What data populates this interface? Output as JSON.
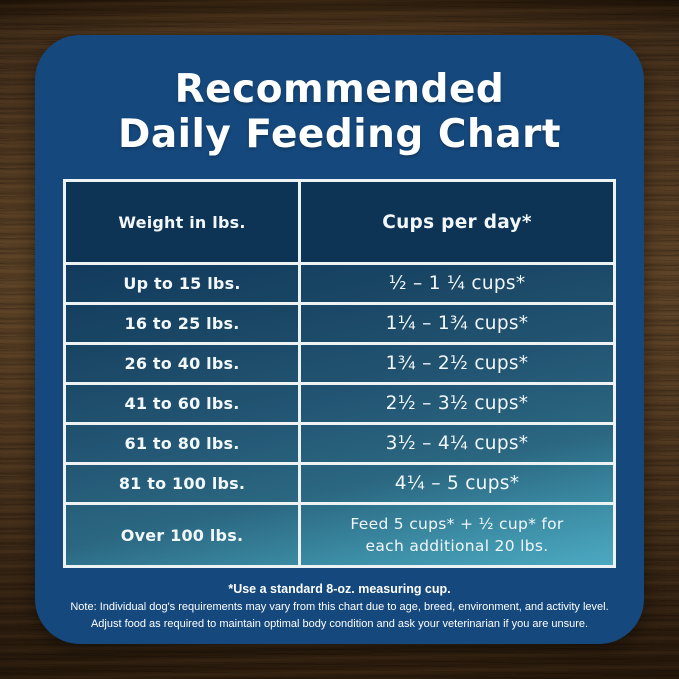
{
  "title": {
    "line1": "Recommended",
    "line2": "Daily Feeding Chart"
  },
  "table": {
    "headers": {
      "weight": "Weight in lbs.",
      "cups": "Cups per day*"
    },
    "rows": [
      {
        "weight": "Up to 15 lbs.",
        "cups": "½ – 1 ¼ cups*"
      },
      {
        "weight": "16 to 25 lbs.",
        "cups": "1¼ – 1¾  cups*"
      },
      {
        "weight": "26 to 40 lbs.",
        "cups": "1¾ – 2½ cups*"
      },
      {
        "weight": "41 to 60 lbs.",
        "cups": "2½ – 3½ cups*"
      },
      {
        "weight": "61 to 80 lbs.",
        "cups": "3½ – 4¼ cups*"
      },
      {
        "weight": "81 to 100 lbs.",
        "cups": "4¼ – 5 cups*"
      },
      {
        "weight": "Over 100 lbs.",
        "cups_line1": "Feed 5 cups* + ½ cup* for",
        "cups_line2": "each additional 20 lbs."
      }
    ]
  },
  "footnotes": {
    "measuring_cup": "*Use a standard 8-oz. measuring cup.",
    "note_line1": "Note: Individual dog's requirements may vary from this chart due to age, breed, environment, and activity level.",
    "note_line2": "Adjust food as required to maintain optimal body condition and ask your veterinarian if you are unsure."
  },
  "colors": {
    "card_blue": "#15497e",
    "header_navy": "#0d3355",
    "grid_line": "#edf2f5",
    "row_gradient_top": "#123a5d",
    "row_gradient_bottom": "#4ba9c1",
    "text": "#ffffff",
    "wood_brown": "#53381f"
  },
  "chart_data": {
    "type": "table",
    "title": "Recommended Daily Feeding Chart",
    "columns": [
      "Weight in lbs.",
      "Cups per day*"
    ],
    "rows": [
      [
        "Up to 15 lbs.",
        "½ – 1 ¼ cups*"
      ],
      [
        "16 to 25 lbs.",
        "1¼ – 1¾ cups*"
      ],
      [
        "26 to 40 lbs.",
        "1¾ – 2½ cups*"
      ],
      [
        "41 to 60 lbs.",
        "2½ – 3½ cups*"
      ],
      [
        "61 to 80 lbs.",
        "3½ – 4¼ cups*"
      ],
      [
        "81 to 100 lbs.",
        "4¼ – 5 cups*"
      ],
      [
        "Over 100 lbs.",
        "Feed 5 cups* + ½ cup* for each additional 20 lbs."
      ]
    ],
    "footnote": "*Use a standard 8-oz. measuring cup."
  }
}
